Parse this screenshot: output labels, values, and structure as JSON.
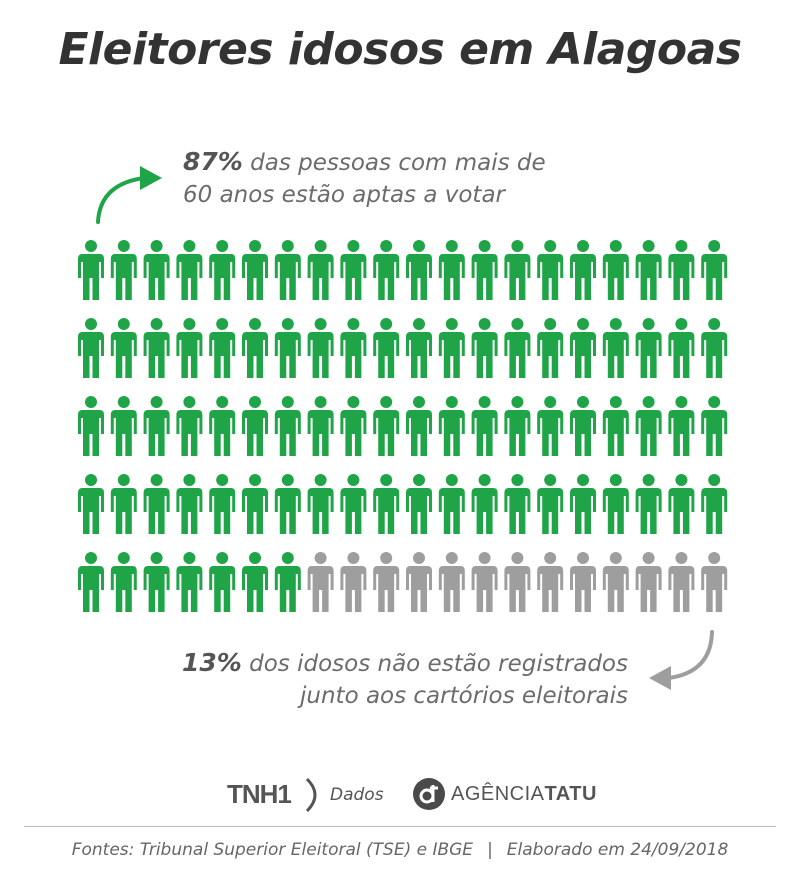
{
  "title": "Eleitores idosos em Alagoas",
  "annotations": {
    "top_pct": "87%",
    "top_line1": "das pessoas com mais de",
    "top_line2": "60 anos estão aptas a votar",
    "bottom_pct": "13%",
    "bottom_line1": "dos idosos não estão registrados",
    "bottom_line2": "junto aos cartórios eleitorais"
  },
  "chart_data": {
    "type": "pictogram",
    "total_icons": 100,
    "rows": 5,
    "columns": 20,
    "series": [
      {
        "name": "aptas a votar",
        "value": 87,
        "color": "#1fa548"
      },
      {
        "name": "não registrados",
        "value": 13,
        "color": "#9e9e9e"
      }
    ]
  },
  "logos": {
    "tnh": "TNH1",
    "dados": "Dados",
    "agencia_light": "AGÊNCIA",
    "agencia_bold": "TATU"
  },
  "footer": {
    "sources": "Fontes: Tribunal Superior Eleitoral (TSE) e IBGE",
    "separator": "|",
    "date": "Elaborado em 24/09/2018"
  }
}
